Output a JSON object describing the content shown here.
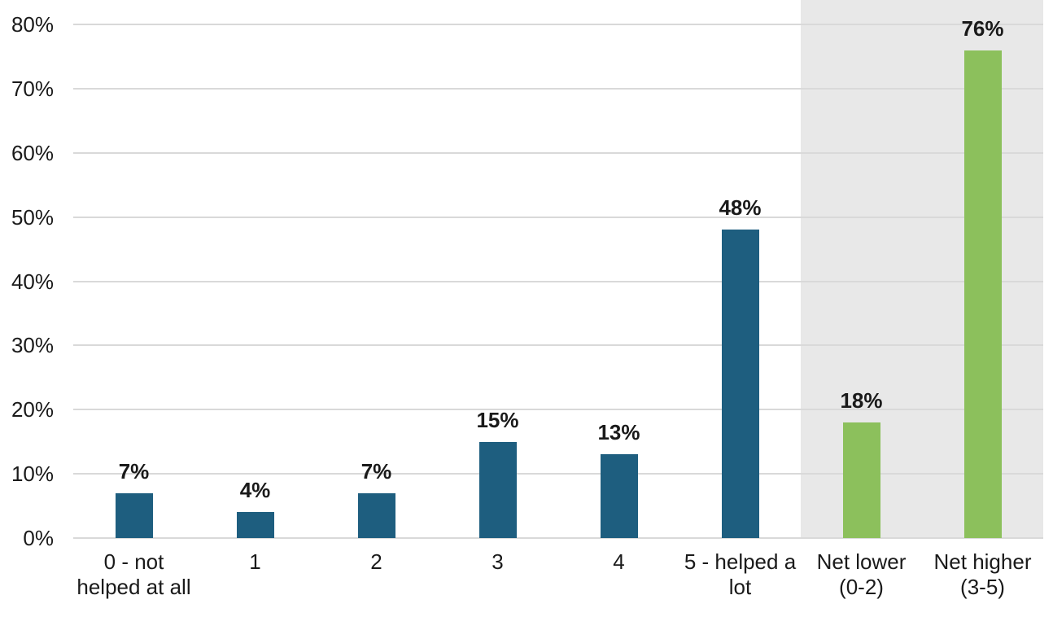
{
  "chart_data": {
    "type": "bar",
    "title": "",
    "xlabel": "",
    "ylabel": "",
    "categories": [
      "0 - not helped at all",
      "1",
      "2",
      "3",
      "4",
      "5 - helped a lot",
      "Net lower (0-2)",
      "Net higher (3-5)"
    ],
    "category_label_lines": [
      [
        "0 - not",
        "helped at all"
      ],
      [
        "1"
      ],
      [
        "2"
      ],
      [
        "3"
      ],
      [
        "4"
      ],
      [
        "5 - helped a",
        "lot"
      ],
      [
        "Net lower",
        "(0-2)"
      ],
      [
        "Net higher",
        "(3-5)"
      ]
    ],
    "values": [
      7,
      4,
      7,
      15,
      13,
      48,
      18,
      76
    ],
    "value_labels": [
      "7%",
      "4%",
      "7%",
      "15%",
      "13%",
      "48%",
      "18%",
      "76%"
    ],
    "bar_colors": [
      "#1E5E7F",
      "#1E5E7F",
      "#1E5E7F",
      "#1E5E7F",
      "#1E5E7F",
      "#1E5E7F",
      "#8CC05C",
      "#8CC05C"
    ],
    "ylim": [
      0,
      80
    ],
    "yticks": [
      0,
      10,
      20,
      30,
      40,
      50,
      60,
      70,
      80
    ],
    "ytick_labels": [
      "0%",
      "10%",
      "20%",
      "30%",
      "40%",
      "50%",
      "60%",
      "70%",
      "80%"
    ],
    "grid": "horizontal",
    "legend": "none",
    "highlight_band": {
      "from_category": "Net lower (0-2)",
      "to_category": "Net higher (3-5)",
      "color": "#E8E8E8"
    }
  },
  "colors": {
    "bar_primary": "#1E5E7F",
    "bar_highlight": "#8CC05C",
    "band_background": "#E8E8E8",
    "gridline": "#D9D9D9",
    "text": "#1A1A1A",
    "background": "#FFFFFF"
  }
}
